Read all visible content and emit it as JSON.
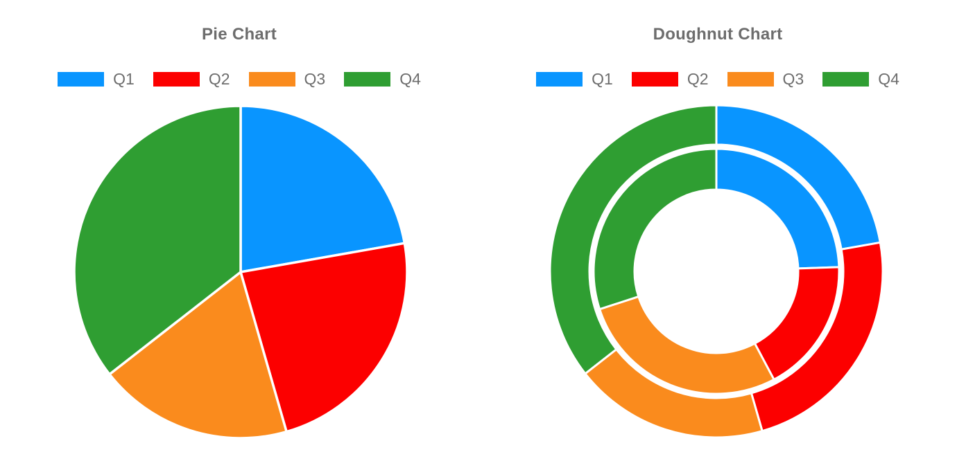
{
  "page": {
    "background": "#FFFFFF",
    "text_color": "#6D6D6D",
    "slice_border_color": "#FFFFFF"
  },
  "chart_data": [
    {
      "type": "pie",
      "title": "Pie Chart",
      "categories": [
        "Q1",
        "Q2",
        "Q3",
        "Q4"
      ],
      "values": [
        20,
        21,
        17,
        32
      ],
      "colors": [
        "#0995FF",
        "#FC0000",
        "#FA8B1D",
        "#2F9E32"
      ],
      "legend_position": "top",
      "start_angle": "12-oclock",
      "direction": "clockwise",
      "grid": false
    },
    {
      "type": "doughnut",
      "title": "Doughnut Chart",
      "categories": [
        "Q1",
        "Q2",
        "Q3",
        "Q4"
      ],
      "series": [
        {
          "name": "outer-ring",
          "values": [
            20,
            21,
            17,
            32
          ]
        },
        {
          "name": "inner-ring",
          "values": [
            22,
            16,
            25,
            27
          ]
        }
      ],
      "colors": [
        "#0995FF",
        "#FC0000",
        "#FA8B1D",
        "#2F9E32"
      ],
      "legend_position": "top",
      "start_angle": "12-oclock",
      "direction": "clockwise",
      "grid": false
    }
  ]
}
